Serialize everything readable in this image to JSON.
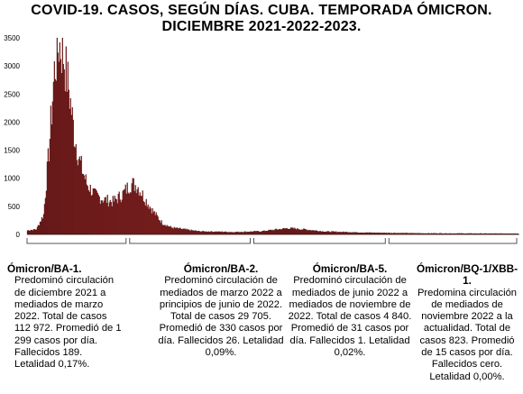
{
  "title_line1": "COVID-19. CASOS, SEGÚN DÍAS. CUBA. TEMPORADA ÓMICRON.",
  "title_line2": "DICIEMBRE 2021-2022-2023.",
  "chart_data": {
    "type": "bar",
    "title": "COVID-19. CASOS, SEGÚN DÍAS. CUBA. TEMPORADA ÓMICRON. DICIEMBRE 2021-2022-2023.",
    "xlabel": "",
    "ylabel": "",
    "ylim": [
      0,
      3500
    ],
    "yticks": [
      0,
      500,
      1000,
      1500,
      2000,
      2500,
      3000,
      3500
    ],
    "grid": false,
    "bar_color": "#8b1a1a",
    "bar_edge_color": "#2a0000",
    "bracket_color": "#555555",
    "profile_note": "daily case counts, approximate shape read from figure",
    "daily_cases_key_points": [
      {
        "day": 0,
        "cases": 70
      },
      {
        "day": 10,
        "cases": 90
      },
      {
        "day": 18,
        "cases": 350
      },
      {
        "day": 24,
        "cases": 1500
      },
      {
        "day": 30,
        "cases": 2900
      },
      {
        "day": 35,
        "cases": 3400
      },
      {
        "day": 40,
        "cases": 3200
      },
      {
        "day": 46,
        "cases": 2600
      },
      {
        "day": 52,
        "cases": 1800
      },
      {
        "day": 58,
        "cases": 1300
      },
      {
        "day": 66,
        "cases": 900
      },
      {
        "day": 75,
        "cases": 700
      },
      {
        "day": 85,
        "cases": 620
      },
      {
        "day": 95,
        "cases": 580
      },
      {
        "day": 105,
        "cases": 700
      },
      {
        "day": 115,
        "cases": 900
      },
      {
        "day": 122,
        "cases": 870
      },
      {
        "day": 130,
        "cases": 650
      },
      {
        "day": 140,
        "cases": 400
      },
      {
        "day": 150,
        "cases": 200
      },
      {
        "day": 160,
        "cases": 120
      },
      {
        "day": 190,
        "cases": 55
      },
      {
        "day": 230,
        "cases": 40
      },
      {
        "day": 260,
        "cases": 55
      },
      {
        "day": 290,
        "cases": 110
      },
      {
        "day": 310,
        "cases": 85
      },
      {
        "day": 330,
        "cases": 50
      },
      {
        "day": 380,
        "cases": 30
      },
      {
        "day": 440,
        "cases": 18
      },
      {
        "day": 500,
        "cases": 15
      },
      {
        "day": 545,
        "cases": 14
      }
    ],
    "day_count": 546,
    "periods": [
      {
        "start_day": 0,
        "end_day": 112
      },
      {
        "start_day": 112,
        "end_day": 250
      },
      {
        "start_day": 250,
        "end_day": 400
      },
      {
        "start_day": 400,
        "end_day": 546
      }
    ]
  },
  "panels": [
    {
      "head": "Ómicron/BA-1.",
      "body": "Predominó circulación de diciembre 2021 a mediados de marzo 2022. Total de casos 112 972. Promedió de 1 299 casos por día. Fallecidos 189. Letalidad 0,17%."
    },
    {
      "head": "Ómicron/BA-2.",
      "body": "Predominó circulación de mediados de marzo 2022 a principios de junio de 2022. Total de casos 29 705. Promedió de 330 casos por día. Fallecidos 26. Letalidad 0,09%."
    },
    {
      "head": "Ómicron/BA-5.",
      "body": "Predominó circulación de mediados de junio 2022 a mediados de noviembre de 2022. Total de casos 4 840. Promedió de 31 casos por día. Fallecidos 1. Letalidad 0,02%."
    },
    {
      "head": "Ómicron/BQ-1/XBB-1.",
      "body": "Predomina circulación de mediados de noviembre 2022 a la actualidad. Total de casos 823. Promedió de 15 casos por día. Fallecidos cero. Letalidad 0,00%."
    }
  ]
}
